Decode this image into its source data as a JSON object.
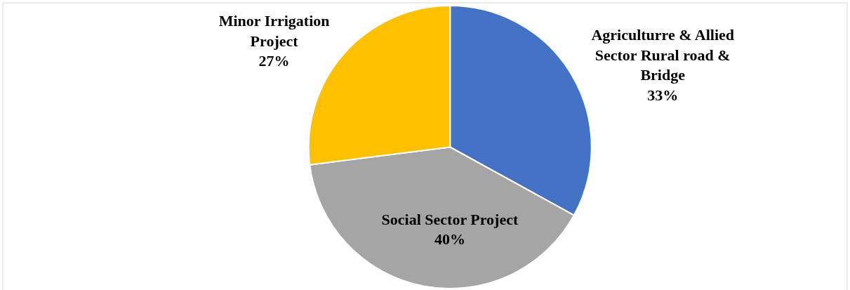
{
  "chart_data": {
    "type": "pie",
    "categories": [
      "Agriculturre & Allied Sector Rural road & Bridge",
      "Social Sector Project",
      "Minor Irrigation Project"
    ],
    "values": [
      33,
      40,
      27
    ],
    "colors": [
      "#4472c4",
      "#a5a5a5",
      "#ffc000"
    ],
    "value_labels": [
      "33%",
      "40%",
      "27%"
    ],
    "legend": false
  }
}
